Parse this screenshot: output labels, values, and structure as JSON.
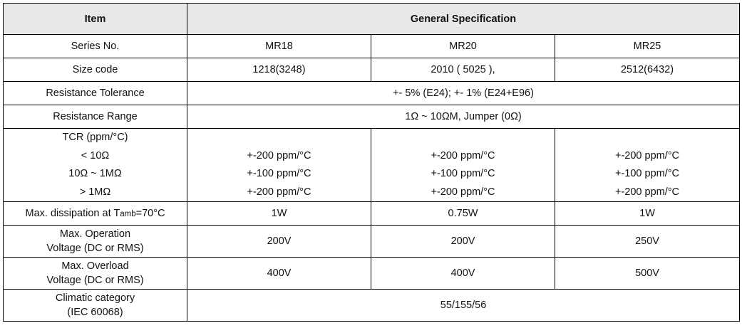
{
  "header": {
    "item": "Item",
    "general": "General Specification"
  },
  "series": {
    "label": "Series No.",
    "values": [
      "MR18",
      "MR20",
      "MR25"
    ]
  },
  "size": {
    "label": "Size code",
    "values": [
      "1218(3248)",
      "2010 ( 5025 ),",
      "2512(6432)"
    ]
  },
  "tolerance": {
    "label": "Resistance Tolerance",
    "value": "+- 5% (E24); +- 1% (E24+E96)"
  },
  "range": {
    "label": "Resistance Range",
    "value": "1Ω ~ 10ΩM, Jumper (0Ω)"
  },
  "tcr": {
    "labels": [
      "TCR (ppm/°C)",
      "< 10Ω",
      "10Ω ~ 1MΩ",
      "> 1MΩ"
    ],
    "columns": [
      [
        "+-200 ppm/°C",
        "+-100 ppm/°C",
        "+-200 ppm/°C"
      ],
      [
        "+-200 ppm/°C",
        "+-100 ppm/°C",
        "+-200 ppm/°C"
      ],
      [
        "+-200 ppm/°C",
        "+-100 ppm/°C",
        "+-200 ppm/°C"
      ]
    ]
  },
  "dissipation": {
    "label_prefix": "Max. dissipation at T",
    "label_sub": "amb",
    "label_suffix": "=70°C",
    "values": [
      "1W",
      "0.75W",
      "1W"
    ]
  },
  "operation": {
    "label_lines": [
      "Max. Operation",
      "Voltage (DC or RMS)"
    ],
    "values": [
      "200V",
      "200V",
      "250V"
    ]
  },
  "overload": {
    "label_lines": [
      "Max. Overload",
      "Voltage (DC or RMS)"
    ],
    "values": [
      "400V",
      "400V",
      "500V"
    ]
  },
  "climatic": {
    "label_lines": [
      "Climatic category",
      "(IEC 60068)"
    ],
    "value": "55/155/56"
  }
}
